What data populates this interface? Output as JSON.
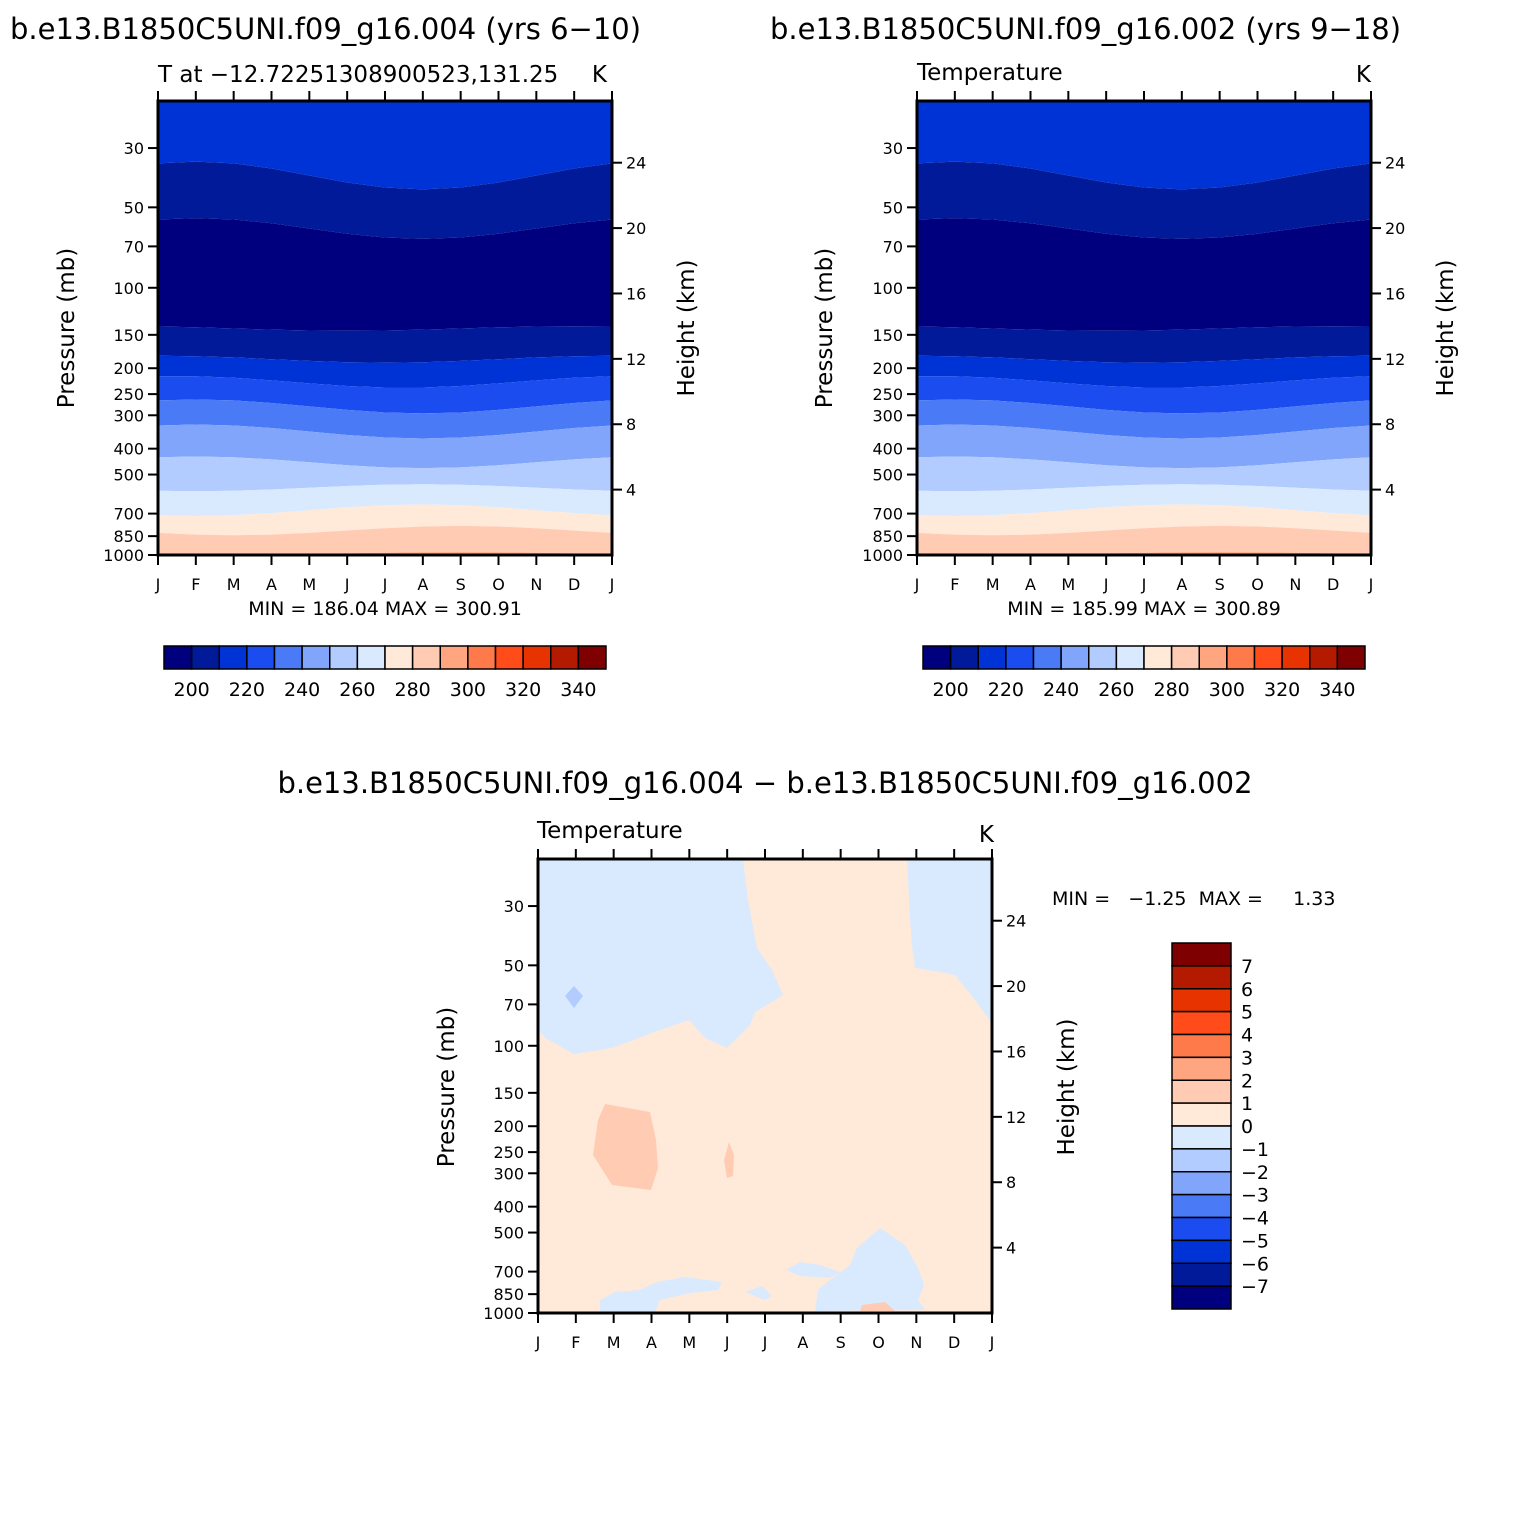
{
  "panel_left": {
    "title": "b.e13.B1850C5UNI.f09_g16.004 (yrs 6−10)",
    "subtitle": "T at −12.72251308900523,131.25",
    "units": "K",
    "minmax": "MIN =  186.04  MAX =  300.91"
  },
  "panel_right": {
    "title": "b.e13.B1850C5UNI.f09_g16.002 (yrs 9−18)",
    "subtitle": "Temperature",
    "units": "K",
    "minmax": "MIN =  185.99  MAX =  300.89"
  },
  "panel_diff": {
    "title": "b.e13.B1850C5UNI.f09_g16.004 − b.e13.B1850C5UNI.f09_g16.002",
    "subtitle": "Temperature",
    "units": "K",
    "minmax": "MIN =   −1.25  MAX =     1.33"
  },
  "colors": {
    "abs_levels": [
      "#00007f",
      "#001a99",
      "#0033d6",
      "#1a4cf0",
      "#4a7af5",
      "#80a5fa",
      "#b3ccff",
      "#d9eaff",
      "#ffe9d9",
      "#ffccb3",
      "#ffa580",
      "#ff7a4a",
      "#ff4c1a",
      "#e63300",
      "#b31a00",
      "#7f0000"
    ],
    "diff_levels": [
      "#00007f",
      "#001a99",
      "#0033d6",
      "#1a4cf0",
      "#4a7af5",
      "#80a5fa",
      "#b3ccff",
      "#d9eaff",
      "#ffe9d9",
      "#ffccb3",
      "#ffa580",
      "#ff7a4a",
      "#ff4c1a",
      "#e63300",
      "#b31a00",
      "#7f0000"
    ]
  },
  "chart_data": [
    {
      "type": "contour",
      "panel": "panel_left",
      "ylabel": "Pressure (mb)",
      "ylabel_right": "Height (km)",
      "x_ticks": [
        "J",
        "F",
        "M",
        "A",
        "M",
        "J",
        "J",
        "A",
        "S",
        "O",
        "N",
        "D",
        "J"
      ],
      "y_ticks": [
        30,
        50,
        70,
        100,
        150,
        200,
        250,
        300,
        400,
        500,
        700,
        850,
        1000
      ],
      "y_right_ticks": [
        4,
        8,
        12,
        16,
        20,
        24
      ],
      "ylim": [
        20,
        1000
      ],
      "y_scale": "log",
      "colorbar_ticks": [
        200,
        220,
        240,
        260,
        280,
        300,
        320,
        340
      ],
      "contour_levels": [
        195,
        200,
        205,
        210,
        215,
        220,
        225,
        230,
        235,
        240,
        245,
        250,
        255,
        260,
        265,
        270,
        275,
        280,
        285,
        290,
        295,
        300,
        305,
        310,
        315,
        320,
        325,
        330,
        335,
        340,
        345
      ]
    },
    {
      "type": "contour",
      "panel": "panel_right",
      "ylabel": "Pressure (mb)",
      "ylabel_right": "Height (km)",
      "x_ticks": [
        "J",
        "F",
        "M",
        "A",
        "M",
        "J",
        "J",
        "A",
        "S",
        "O",
        "N",
        "D",
        "J"
      ],
      "y_ticks": [
        30,
        50,
        70,
        100,
        150,
        200,
        250,
        300,
        400,
        500,
        700,
        850,
        1000
      ],
      "y_right_ticks": [
        4,
        8,
        12,
        16,
        20,
        24
      ],
      "ylim": [
        20,
        1000
      ],
      "y_scale": "log",
      "colorbar_ticks": [
        200,
        220,
        240,
        260,
        280,
        300,
        320,
        340
      ]
    },
    {
      "type": "contour",
      "panel": "panel_diff",
      "ylabel": "Pressure (mb)",
      "ylabel_right": "Height (km)",
      "x_ticks": [
        "J",
        "F",
        "M",
        "A",
        "M",
        "J",
        "J",
        "A",
        "S",
        "O",
        "N",
        "D",
        "J"
      ],
      "y_ticks": [
        30,
        50,
        70,
        100,
        150,
        200,
        250,
        300,
        400,
        500,
        700,
        850,
        1000
      ],
      "y_right_ticks": [
        4,
        8,
        12,
        16,
        20,
        24
      ],
      "ylim": [
        20,
        1000
      ],
      "y_scale": "log",
      "colorbar_ticks": [
        "7",
        "6",
        "5",
        "4",
        "3",
        "2",
        "1",
        "0",
        "−1",
        "−2",
        "−3",
        "−4",
        "−5",
        "−6",
        "−7"
      ]
    }
  ]
}
